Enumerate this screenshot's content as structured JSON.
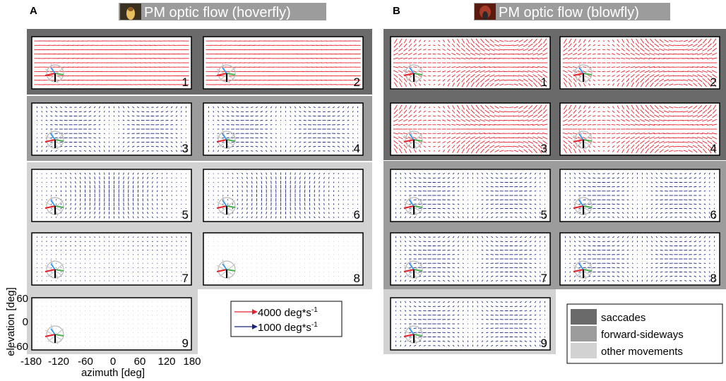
{
  "panels": [
    {
      "letter": "A",
      "title": "PM optic flow (hoverfly)"
    },
    {
      "letter": "B",
      "title": "PM optic flow (blowfly)"
    }
  ],
  "scale_legend": {
    "red_label": "4000 deg*s",
    "red_exp": "-1",
    "blue_label": "1000 deg*s",
    "blue_exp": "-1",
    "red_color": "#e8202a",
    "blue_color": "#1a237e"
  },
  "group_legend": [
    {
      "label": "saccades",
      "color": "#6a6a6a"
    },
    {
      "label": "forward-sideways",
      "color": "#9c9c9c"
    },
    {
      "label": "other movements",
      "color": "#d2d2d2"
    }
  ],
  "axes": {
    "xlabel": "azimuth [deg]",
    "ylabel": "elevation [deg]",
    "x_ticks": [
      "-180",
      "-120",
      "-60",
      "0",
      "60",
      "120",
      "180"
    ],
    "y_ticks": [
      "60",
      "0",
      "-60"
    ]
  },
  "chart_data": [
    {
      "type": "quiver",
      "title": "PM optic flow (hoverfly)",
      "xlabel": "azimuth [deg]",
      "ylabel": "elevation [deg]",
      "xlim": [
        -180,
        180
      ],
      "ylim": [
        -60,
        60
      ],
      "clusters": [
        {
          "id": "1",
          "group": "saccades",
          "color": "#e8202a",
          "flow": "yaw"
        },
        {
          "id": "2",
          "group": "saccades",
          "color": "#e8202a",
          "flow": "yaw"
        },
        {
          "id": "3",
          "group": "forward-sideways",
          "color": "#1a237e",
          "flow": "forward"
        },
        {
          "id": "4",
          "group": "forward-sideways",
          "color": "#1a237e",
          "flow": "forward"
        },
        {
          "id": "5",
          "group": "other movements",
          "color": "#1a237e",
          "flow": "lift"
        },
        {
          "id": "6",
          "group": "other movements",
          "color": "#1a237e",
          "flow": "lift"
        },
        {
          "id": "7",
          "group": "other movements",
          "color": "#1a237e",
          "flow": "weak"
        },
        {
          "id": "8",
          "group": "other movements",
          "color": "#1a237e",
          "flow": "tiny"
        },
        {
          "id": "9",
          "group": "other movements",
          "color": "#1a237e",
          "flow": "tiny"
        }
      ]
    },
    {
      "type": "quiver",
      "title": "PM optic flow (blowfly)",
      "xlabel": "azimuth [deg]",
      "ylabel": "elevation [deg]",
      "xlim": [
        -180,
        180
      ],
      "ylim": [
        -60,
        60
      ],
      "clusters": [
        {
          "id": "1",
          "group": "saccades",
          "color": "#e8202a",
          "flow": "roll"
        },
        {
          "id": "2",
          "group": "saccades",
          "color": "#e8202a",
          "flow": "roll"
        },
        {
          "id": "3",
          "group": "saccades",
          "color": "#e8202a",
          "flow": "roll"
        },
        {
          "id": "4",
          "group": "saccades",
          "color": "#e8202a",
          "flow": "roll"
        },
        {
          "id": "5",
          "group": "forward-sideways",
          "color": "#1a237e",
          "flow": "forward"
        },
        {
          "id": "6",
          "group": "forward-sideways",
          "color": "#1a237e",
          "flow": "forward"
        },
        {
          "id": "7",
          "group": "forward-sideways",
          "color": "#1a237e",
          "flow": "forward"
        },
        {
          "id": "8",
          "group": "forward-sideways",
          "color": "#1a237e",
          "flow": "forward"
        },
        {
          "id": "9",
          "group": "other movements",
          "color": "#1a237e",
          "flow": "forward"
        }
      ]
    }
  ]
}
